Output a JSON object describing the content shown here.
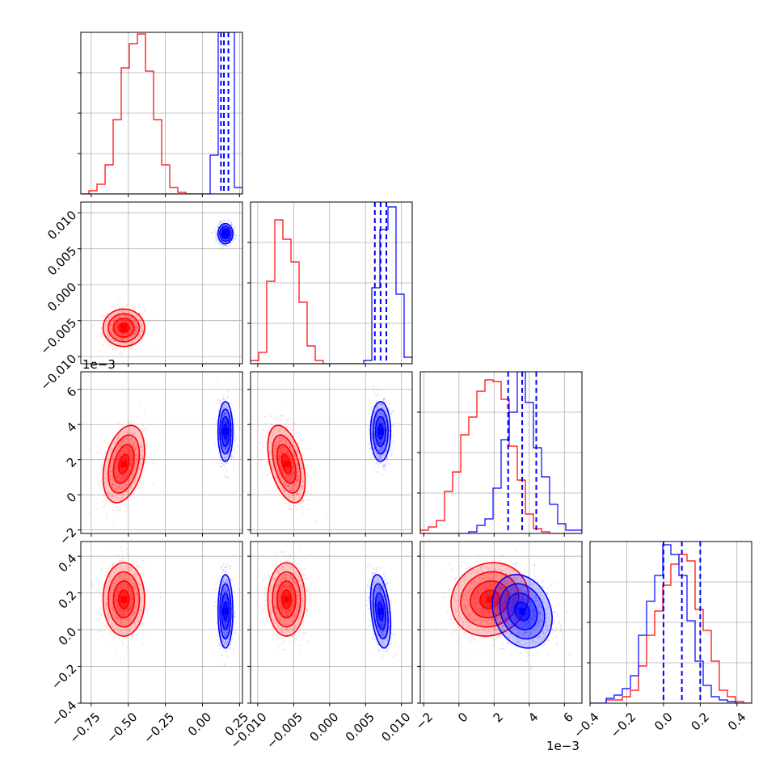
{
  "chart_data": {
    "type": "corner",
    "title": "",
    "colors": {
      "red": "#ff0000",
      "blue": "#0000ff",
      "grid": "#b0b0b0"
    },
    "grid": true,
    "parameters": [
      {
        "ticks": [
          -0.75,
          -0.5,
          -0.25,
          0.0,
          0.25
        ],
        "tick_labels": [
          "−0.75",
          "−0.50",
          "−0.25",
          "0.00",
          "0.25"
        ],
        "lim": [
          -0.82,
          0.27
        ],
        "offset_label": ""
      },
      {
        "ticks": [
          -0.01,
          -0.005,
          0.0,
          0.005,
          0.01
        ],
        "tick_labels": [
          "−0.010",
          "−0.005",
          "0.000",
          "0.005",
          "0.010"
        ],
        "lim": [
          -0.011,
          0.0115
        ],
        "offset_label": ""
      },
      {
        "ticks": [
          -2,
          0,
          2,
          4,
          6
        ],
        "tick_labels": [
          "−2",
          "0",
          "2",
          "4",
          "6"
        ],
        "lim": [
          -2.2,
          7.0
        ],
        "offset_label": "1e−3"
      },
      {
        "ticks": [
          -0.4,
          -0.2,
          0.0,
          0.2,
          0.4
        ],
        "tick_labels": [
          "−0.4",
          "−0.2",
          "0.0",
          "0.2",
          "0.4"
        ],
        "lim": [
          -0.4,
          0.48
        ],
        "offset_label": ""
      }
    ],
    "series": [
      {
        "color": "red",
        "mean": [
          -0.53,
          -0.006,
          1.75,
          0.165
        ],
        "sd": [
          0.07,
          0.0013,
          1.1,
          0.1
        ],
        "corr": {
          "0,2": 0.35,
          "1,2": -0.45,
          "2,3": 0.1
        }
      },
      {
        "color": "blue",
        "mean": [
          0.155,
          0.0071,
          3.6,
          0.1
        ],
        "sd": [
          0.025,
          0.0007,
          0.85,
          0.1
        ],
        "corr": {
          "1,3": -0.35,
          "2,3": -0.2
        },
        "quantiles": [
          [
            0.125,
            0.145,
            0.175
          ],
          [
            0.0063,
            0.0071,
            0.0079
          ],
          [
            2.8,
            3.6,
            4.4
          ],
          [
            0.0,
            0.1,
            0.2
          ]
        ]
      }
    ],
    "histograms": [
      {
        "red": [
          0,
          0.02,
          0.06,
          0.18,
          0.46,
          0.78,
          0.93,
          0.99,
          0.76,
          0.46,
          0.18,
          0.04,
          0.01,
          0,
          0,
          0,
          0,
          0,
          0,
          0
        ],
        "blue": [
          0,
          0,
          0,
          0,
          0,
          0,
          0,
          0,
          0,
          0,
          0,
          0,
          0,
          0,
          0,
          0,
          0.24,
          1.0,
          1.0,
          0.04
        ]
      },
      {
        "red": [
          0.02,
          0.07,
          0.51,
          0.89,
          0.77,
          0.63,
          0.38,
          0.11,
          0.02,
          0,
          0,
          0,
          0,
          0,
          0,
          0,
          0,
          0,
          0,
          0
        ],
        "blue": [
          0,
          0,
          0,
          0,
          0,
          0,
          0,
          0,
          0,
          0,
          0,
          0,
          0,
          0,
          0.02,
          0.47,
          0.83,
          0.97,
          0.43,
          0.04
        ]
      },
      {
        "red": [
          0.02,
          0.04,
          0.08,
          0.26,
          0.38,
          0.61,
          0.72,
          0.88,
          0.95,
          0.94,
          0.83,
          0.54,
          0.33,
          0.12,
          0.03,
          0.01,
          0,
          0,
          0,
          0
        ],
        "blue": [
          0,
          0,
          0,
          0,
          0,
          0,
          0.01,
          0.05,
          0.09,
          0.28,
          0.58,
          0.75,
          1.0,
          0.81,
          0.53,
          0.35,
          0.18,
          0.06,
          0.02,
          0.02
        ]
      },
      {
        "red": [
          0,
          0,
          0.02,
          0.02,
          0.04,
          0.08,
          0.23,
          0.42,
          0.57,
          0.73,
          0.86,
          0.92,
          0.88,
          0.58,
          0.45,
          0.26,
          0.08,
          0.04,
          0.01,
          0
        ],
        "blue": [
          0,
          0,
          0.03,
          0.05,
          0.09,
          0.17,
          0.42,
          0.63,
          0.79,
          0.98,
          0.92,
          0.79,
          0.51,
          0.26,
          0.11,
          0.04,
          0.02,
          0.01,
          0,
          0
        ]
      }
    ]
  }
}
